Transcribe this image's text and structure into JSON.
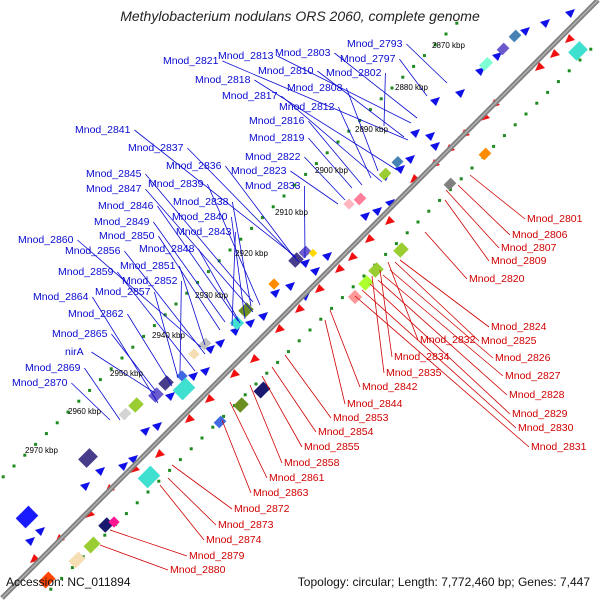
{
  "title": "Methylobacterium nodulans ORS 2060, complete genome",
  "footer": {
    "accession": "Accession: NC_011894",
    "topology": "Topology: circular; Length: 7,772,460 bp; Genes: 7,447"
  },
  "colors": {
    "forward_label": "#0a0ad0",
    "reverse_label": "#d00000",
    "forward_gene": "#1010e8",
    "reverse_gene": "#f01010",
    "backbone": "#808080",
    "dots": "#1f8a1f"
  },
  "ticks": [
    "2870 kbp",
    "2880 kbp",
    "2890 kbp",
    "2900 kbp",
    "2910 kbp",
    "2920 kbp",
    "2930 kbp",
    "2940 kbp",
    "2950 kbp",
    "2960 kbp",
    "2970 kbp"
  ],
  "forward_genes": [
    "Mnod_2793",
    "Mnod_2797",
    "Mnod_2803",
    "Mnod_2813",
    "Mnod_2821",
    "Mnod_2810",
    "Mnod_2802",
    "Mnod_2818",
    "Mnod_2808",
    "Mnod_2817",
    "Mnod_2812",
    "Mnod_2816",
    "Mnod_2819",
    "Mnod_2841",
    "Mnod_2837",
    "Mnod_2822",
    "Mnod_2836",
    "Mnod_2823",
    "Mnod_2845",
    "Mnod_2839",
    "Mnod_2833",
    "Mnod_2847",
    "Mnod_2838",
    "Mnod_2846",
    "Mnod_2840",
    "Mnod_2849",
    "Mnod_2843",
    "Mnod_2850",
    "Mnod_2860",
    "Mnod_2856",
    "Mnod_2848",
    "Mnod_2851",
    "Mnod_2859",
    "Mnod_2852",
    "Mnod_2857",
    "Mnod_2864",
    "Mnod_2862",
    "Mnod_2865",
    "nirA",
    "Mnod_2869",
    "Mnod_2870"
  ],
  "reverse_genes": [
    "Mnod_2801",
    "Mnod_2806",
    "Mnod_2807",
    "Mnod_2809",
    "Mnod_2820",
    "Mnod_2824",
    "Mnod_2832",
    "Mnod_2825",
    "Mnod_2834",
    "Mnod_2826",
    "Mnod_2835",
    "Mnod_2827",
    "Mnod_2842",
    "Mnod_2828",
    "Mnod_2844",
    "Mnod_2829",
    "Mnod_2853",
    "Mnod_2830",
    "Mnod_2854",
    "Mnod_2831",
    "Mnod_2855",
    "Mnod_2858",
    "Mnod_2861",
    "Mnod_2863",
    "Mnod_2872",
    "Mnod_2873",
    "Mnod_2874",
    "Mnod_2879",
    "Mnod_2880"
  ]
}
